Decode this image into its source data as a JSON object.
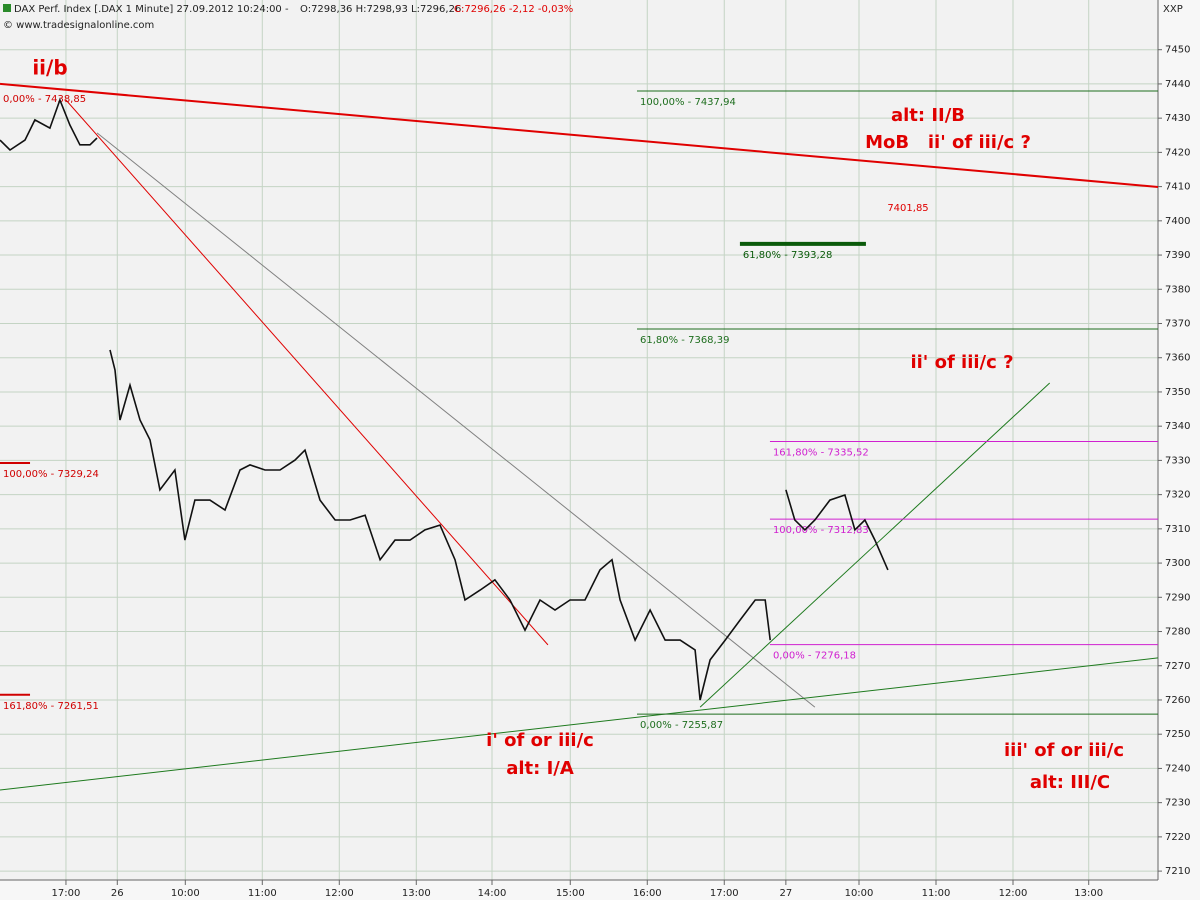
{
  "chart_data": {
    "type": "line",
    "title": "DAX Perf. Index [.DAX  1 Minute] 27.09.2012 10:24:00 -",
    "ohlc": "O:7298,36 H:7298,93 L:7296,26",
    "close": "C:7296,26 -2,12 -0,03%",
    "source": "© www.tradesignalonline.com",
    "corner": "XXP",
    "grid": true,
    "xlim": [
      -51.4,
      851
    ],
    "ylim": [
      7207.4,
      7461.6
    ],
    "yticks": [
      7210,
      7220,
      7230,
      7240,
      7250,
      7260,
      7270,
      7280,
      7290,
      7300,
      7310,
      7320,
      7330,
      7340,
      7350,
      7360,
      7370,
      7380,
      7390,
      7400,
      7410,
      7420,
      7430,
      7440,
      7450
    ],
    "xticks": [
      {
        "value": 0,
        "label": "17:00"
      },
      {
        "value": 40,
        "label": "26"
      },
      {
        "value": 93,
        "label": "10:00"
      },
      {
        "value": 153,
        "label": "11:00"
      },
      {
        "value": 213,
        "label": "12:00"
      },
      {
        "value": 273,
        "label": "13:00"
      },
      {
        "value": 332,
        "label": "14:00"
      },
      {
        "value": 393,
        "label": "15:00"
      },
      {
        "value": 453,
        "label": "16:00"
      },
      {
        "value": 513,
        "label": "17:00"
      },
      {
        "value": 561,
        "label": "27"
      },
      {
        "value": 618,
        "label": "10:00"
      },
      {
        "value": 678,
        "label": "11:00"
      },
      {
        "value": 738,
        "label": "12:00"
      },
      {
        "value": 797,
        "label": "13:00"
      }
    ],
    "series": [
      {
        "name": "DAX Perf. Index",
        "color": "#111111",
        "x": [
          -51.4,
          -43.6,
          -31.9,
          -24.2,
          -12.5,
          -4.7,
          3.1,
          10.9,
          18.7,
          24.2,
          28,
          34.3,
          38.2,
          42.1,
          49.9,
          57.7,
          65.5,
          73.2,
          84.9,
          92.7,
          100.5,
          112.2,
          123.9,
          135.6,
          143.4,
          155.1,
          166.8,
          178.5,
          186.3,
          198,
          209.7,
          221.4,
          233.1,
          244.8,
          256.4,
          268.1,
          279.8,
          291.5,
          303.2,
          311,
          322.7,
          334.3,
          346,
          357.7,
          369.4,
          381.1,
          392.8,
          404.5,
          416.2,
          425.5,
          431.8,
          443.5,
          455.2,
          466.9,
          478.6,
          490.3,
          494.2,
          502,
          513.7,
          525.4,
          537.1,
          544.9,
          548.8,
          552,
          561,
          568,
          575.8,
          583.6,
          595.3,
          607,
          614.8,
          622.6,
          630.4,
          640.5
        ],
        "values": [
          7423.6,
          7420.7,
          7423.6,
          7429.5,
          7427.1,
          7435.3,
          7428.0,
          7422.2,
          7422.2,
          7424.2,
          null,
          7362.3,
          7356.4,
          7341.8,
          7352.0,
          7341.8,
          7336.0,
          7321.4,
          7327.2,
          7306.7,
          7318.4,
          7318.4,
          7315.5,
          7327.2,
          7328.7,
          7327.2,
          7327.2,
          7330.1,
          7333.0,
          7318.4,
          7312.6,
          7312.6,
          7314.0,
          7301.0,
          7306.7,
          7306.7,
          7309.7,
          7311.1,
          7301.0,
          7289.2,
          7292.1,
          7295.1,
          7289.2,
          7280.4,
          7289.2,
          7286.3,
          7289.2,
          7289.2,
          7298.0,
          7301.0,
          7289.2,
          7277.5,
          7286.3,
          7277.5,
          7277.5,
          7274.6,
          7260.0,
          7271.7,
          7277.5,
          7283.4,
          7289.2,
          7289.2,
          7277.5,
          null,
          7321.4,
          7312.6,
          7309.7,
          7312.6,
          7318.4,
          7319.9,
          7309.7,
          7312.6,
          7306.7,
          7298.0
        ]
      }
    ],
    "trendlines": [
      {
        "color": "#e00000",
        "width": 2,
        "x": [
          -51.4,
          851
        ],
        "values": [
          7440,
          7409.9
        ]
      },
      {
        "color": "#e00000",
        "width": 1,
        "x": [
          0,
          375.6
        ],
        "values": [
          7435.3,
          7276.1
        ]
      },
      {
        "color": "#808080",
        "width": 1,
        "x": [
          24.2,
          583.6
        ],
        "values": [
          7425.7,
          7257.9
        ]
      },
      {
        "color": "#1e7a1e",
        "width": 1,
        "x": [
          -51.4,
          851
        ],
        "values": [
          7233.7,
          7272.3
        ]
      },
      {
        "color": "#1e7a1e",
        "width": 1,
        "x": [
          494.2,
          766.6
        ],
        "values": [
          7257.9,
          7352.6
        ]
      }
    ],
    "levels": [
      {
        "label": "0,00% - 7438,85",
        "value": 7438.85,
        "color": "#d00000",
        "width": 0,
        "from": -51.4,
        "to": -28
      },
      {
        "label": "100,00% - 7437,94",
        "value": 7437.94,
        "color": "#1e6e1e",
        "width": 1,
        "from": 445,
        "to": 851
      },
      {
        "label": "61,80% - 7393,28",
        "value": 7393.28,
        "color": "#0a5a0a",
        "width": 4,
        "from": 525.2,
        "to": 623.4
      },
      {
        "label": "61,80% - 7368,39",
        "value": 7368.39,
        "color": "#1e6e1e",
        "width": 1,
        "from": 445,
        "to": 851
      },
      {
        "label": "161,80% - 7335,52",
        "value": 7335.52,
        "color": "#d020d0",
        "width": 1,
        "from": 548.6,
        "to": 851
      },
      {
        "label": "100,00% - 7329,24",
        "value": 7329.24,
        "color": "#d00000",
        "width": 2,
        "from": -51.4,
        "to": -28
      },
      {
        "label": "100,00% - 7312,83",
        "value": 7312.83,
        "color": "#d020d0",
        "width": 1,
        "from": 548.6,
        "to": 851
      },
      {
        "label": "0,00% - 7276,18",
        "value": 7276.18,
        "color": "#d020d0",
        "width": 1,
        "from": 548.6,
        "to": 851
      },
      {
        "label": "161,80% - 7261,51",
        "value": 7261.51,
        "color": "#d00000",
        "width": 2,
        "from": -51.4,
        "to": -28
      },
      {
        "label": "0,00% - 7255,87",
        "value": 7255.87,
        "color": "#1e6e1e",
        "width": 1,
        "from": 445,
        "to": 851
      }
    ],
    "annotations": [
      "ii/b",
      "alt: II/B",
      "MoB   ii' of iii/c ?",
      "7401,85",
      "ii' of iii/c ?",
      "i' of or iii/c",
      "alt: I/A",
      "iii' of or iii/c",
      "alt: III/C"
    ]
  }
}
